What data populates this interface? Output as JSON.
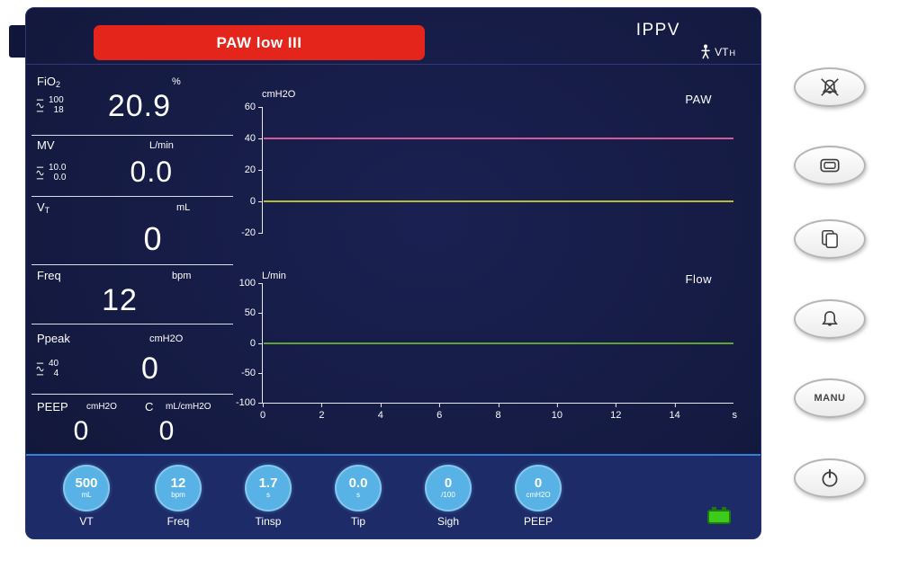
{
  "colors": {
    "screen_bg": "#151b42",
    "bottom_bar_bg": "#1d2b68",
    "alarm_red": "#e3251c",
    "knob_blue": "#58b2e6",
    "accent_blue_line": "#2f82da",
    "battery_green": "#3ecc1a"
  },
  "header": {
    "alarm_banner": "PAW low III",
    "mode": "IPPV",
    "patient_label": "VT",
    "patient_label_sub": "H"
  },
  "parameters": {
    "fio2": {
      "label": "FiO",
      "label_sub": "2",
      "unit": "%",
      "limit_high": "100",
      "limit_low": "18",
      "value": "20.9"
    },
    "mv": {
      "label": "MV",
      "unit": "L/min",
      "limit_high": "10.0",
      "limit_low": "0.0",
      "value": "0.0"
    },
    "vt": {
      "label": "V",
      "label_sub": "T",
      "unit": "mL",
      "value": "0"
    },
    "freq": {
      "label": "Freq",
      "unit": "bpm",
      "value": "12"
    },
    "ppeak": {
      "label": "Ppeak",
      "unit": "cmH2O",
      "limit_high": "40",
      "limit_low": "4",
      "value": "0"
    },
    "peep_c": {
      "label_peep": "PEEP",
      "unit_peep": "cmH2O",
      "label_c": "C",
      "unit_c": "mL/cmH2O",
      "value_peep": "0",
      "value_c": "0"
    }
  },
  "charts": [
    {
      "type": "line",
      "ylabel": "cmH2O",
      "title": "PAW",
      "ymax": 60,
      "ymin": -20,
      "yticks": [
        "60",
        "40",
        "20",
        "0",
        "-20"
      ],
      "ytick_values": [
        60,
        40,
        20,
        0,
        -20
      ],
      "lines": [
        {
          "name": "paw-high-alarm-limit",
          "value": 40,
          "color": "#d4589e"
        },
        {
          "name": "paw-pressure-trace",
          "value": 0,
          "color": "#b9ba35"
        }
      ]
    },
    {
      "type": "line",
      "ylabel": "L/min",
      "title": "Flow",
      "ymax": 100,
      "ymin": -100,
      "yticks": [
        "100",
        "50",
        "0",
        "-50",
        "-100"
      ],
      "ytick_values": [
        100,
        50,
        0,
        -50,
        -100
      ],
      "lines": [
        {
          "name": "flow-trace",
          "value": 0,
          "color": "#5fa433"
        }
      ]
    }
  ],
  "xaxis": {
    "ticks": [
      "0",
      "2",
      "4",
      "6",
      "8",
      "10",
      "12",
      "14"
    ],
    "tick_values": [
      0,
      2,
      4,
      6,
      8,
      10,
      12,
      14
    ],
    "max": 16,
    "unit": "s"
  },
  "knobs": [
    {
      "value": "500",
      "unit": "mL",
      "label": "VT"
    },
    {
      "value": "12",
      "unit": "bpm",
      "label": "Freq"
    },
    {
      "value": "1.7",
      "unit": "s",
      "label": "Tinsp"
    },
    {
      "value": "0.0",
      "unit": "s",
      "label": "Tip"
    },
    {
      "value": "0",
      "unit": "/100",
      "label": "Sigh"
    },
    {
      "value": "0",
      "unit": "cmH2O",
      "label": "PEEP"
    }
  ],
  "side_buttons": [
    {
      "icon": "alarm-silence-icon"
    },
    {
      "icon": "screen-layout-icon"
    },
    {
      "icon": "pages-icon"
    },
    {
      "icon": "alarm-settings-icon"
    },
    {
      "icon": "manu-button",
      "label": "MANU"
    },
    {
      "icon": "power-icon"
    }
  ]
}
